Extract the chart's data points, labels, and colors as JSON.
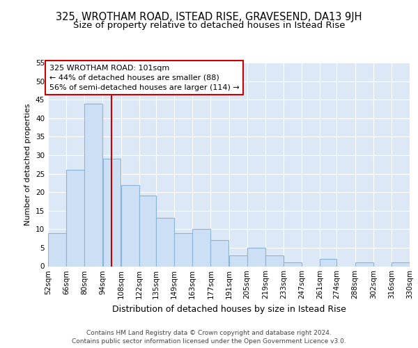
{
  "title": "325, WROTHAM ROAD, ISTEAD RISE, GRAVESEND, DA13 9JH",
  "subtitle": "Size of property relative to detached houses in Istead Rise",
  "xlabel": "Distribution of detached houses by size in Istead Rise",
  "ylabel": "Number of detached properties",
  "bins": [
    52,
    66,
    80,
    94,
    108,
    122,
    135,
    149,
    163,
    177,
    191,
    205,
    219,
    233,
    247,
    261,
    274,
    288,
    302,
    316,
    330
  ],
  "bin_labels": [
    "52sqm",
    "66sqm",
    "80sqm",
    "94sqm",
    "108sqm",
    "122sqm",
    "135sqm",
    "149sqm",
    "163sqm",
    "177sqm",
    "191sqm",
    "205sqm",
    "219sqm",
    "233sqm",
    "247sqm",
    "261sqm",
    "274sqm",
    "288sqm",
    "302sqm",
    "316sqm",
    "330sqm"
  ],
  "bar_heights": [
    9,
    26,
    44,
    29,
    22,
    19,
    13,
    9,
    10,
    7,
    3,
    5,
    3,
    1,
    0,
    2,
    0,
    1,
    0,
    1
  ],
  "bar_color": "#ccdff5",
  "bar_edge_color": "#8ab4d8",
  "vline_x": 101,
  "vline_color": "#cc0000",
  "annotation_text": "325 WROTHAM ROAD: 101sqm\n← 44% of detached houses are smaller (88)\n56% of semi-detached houses are larger (114) →",
  "annotation_box_facecolor": "#ffffff",
  "annotation_box_edgecolor": "#cc0000",
  "ylim": [
    0,
    55
  ],
  "yticks": [
    0,
    5,
    10,
    15,
    20,
    25,
    30,
    35,
    40,
    45,
    50,
    55
  ],
  "background_color": "#dce8f5",
  "fig_background": "#ffffff",
  "footer_text": "Contains HM Land Registry data © Crown copyright and database right 2024.\nContains public sector information licensed under the Open Government Licence v3.0.",
  "grid_color": "#ffffff",
  "title_fontsize": 10.5,
  "subtitle_fontsize": 9.5,
  "xlabel_fontsize": 9,
  "ylabel_fontsize": 8,
  "tick_fontsize": 7.5,
  "annotation_fontsize": 8,
  "footer_fontsize": 6.5
}
